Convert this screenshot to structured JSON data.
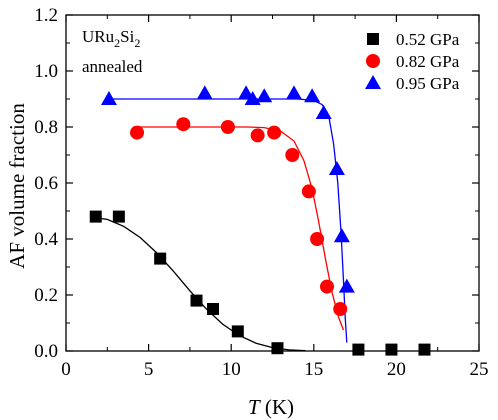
{
  "chart_data": {
    "type": "scatter",
    "xlabel_italic": "T",
    "xlabel_unit": " (K)",
    "ylabel": "AF volume fraction",
    "xlim": [
      0,
      25
    ],
    "ylim": [
      0,
      1.2
    ],
    "xticks": [
      "0",
      "5",
      "10",
      "15",
      "20",
      "25"
    ],
    "yticks": [
      "0.0",
      "0.2",
      "0.4",
      "0.6",
      "0.8",
      "1.0",
      "1.2"
    ],
    "grid": false,
    "legend_position": "top-right",
    "annotations": {
      "compound_main": "URu",
      "compound_sub1": "2",
      "compound_mid": "Si",
      "compound_sub2": "2",
      "condition": "annealed"
    },
    "series": [
      {
        "name": "0.52 GPa",
        "marker": "square",
        "color": "#000000",
        "points": [
          [
            1.8,
            0.48
          ],
          [
            3.2,
            0.48
          ],
          [
            5.7,
            0.33
          ],
          [
            7.9,
            0.18
          ],
          [
            8.9,
            0.15
          ],
          [
            10.4,
            0.07
          ],
          [
            12.8,
            0.01
          ],
          [
            17.7,
            0.005
          ],
          [
            19.7,
            0.005
          ],
          [
            21.7,
            0.005
          ]
        ],
        "fit": [
          [
            1.5,
            0.478
          ],
          [
            2.5,
            0.47
          ],
          [
            3.5,
            0.445
          ],
          [
            4.5,
            0.405
          ],
          [
            5.5,
            0.35
          ],
          [
            6.5,
            0.285
          ],
          [
            7.5,
            0.215
          ],
          [
            8.5,
            0.15
          ],
          [
            9.5,
            0.095
          ],
          [
            10.5,
            0.055
          ],
          [
            11.5,
            0.028
          ],
          [
            12.5,
            0.012
          ],
          [
            13.5,
            0.004
          ],
          [
            14.5,
            0.001
          ]
        ]
      },
      {
        "name": "0.82 GPa",
        "marker": "circle",
        "color": "#ff0000",
        "points": [
          [
            4.3,
            0.78
          ],
          [
            7.1,
            0.81
          ],
          [
            9.8,
            0.8
          ],
          [
            11.6,
            0.77
          ],
          [
            12.6,
            0.78
          ],
          [
            13.7,
            0.7
          ],
          [
            14.7,
            0.57
          ],
          [
            15.2,
            0.4
          ],
          [
            15.8,
            0.23
          ],
          [
            16.6,
            0.15
          ]
        ],
        "fit": [
          [
            4.3,
            0.8
          ],
          [
            8.0,
            0.8
          ],
          [
            11.0,
            0.8
          ],
          [
            12.0,
            0.798
          ],
          [
            13.0,
            0.785
          ],
          [
            13.8,
            0.75
          ],
          [
            14.4,
            0.68
          ],
          [
            14.9,
            0.58
          ],
          [
            15.3,
            0.46
          ],
          [
            15.7,
            0.33
          ],
          [
            16.1,
            0.21
          ],
          [
            16.5,
            0.12
          ],
          [
            16.8,
            0.075
          ]
        ]
      },
      {
        "name": "0.95 GPa",
        "marker": "triangle",
        "color": "#0000ff",
        "points": [
          [
            2.6,
            0.9
          ],
          [
            8.4,
            0.92
          ],
          [
            10.9,
            0.92
          ],
          [
            11.3,
            0.9
          ],
          [
            12.0,
            0.91
          ],
          [
            13.8,
            0.92
          ],
          [
            14.9,
            0.91
          ],
          [
            15.6,
            0.85
          ],
          [
            16.4,
            0.65
          ],
          [
            16.7,
            0.41
          ],
          [
            17.0,
            0.23
          ]
        ],
        "fit": [
          [
            2.6,
            0.9
          ],
          [
            10.0,
            0.9
          ],
          [
            14.0,
            0.9
          ],
          [
            15.0,
            0.895
          ],
          [
            15.5,
            0.88
          ],
          [
            15.9,
            0.84
          ],
          [
            16.2,
            0.74
          ],
          [
            16.45,
            0.6
          ],
          [
            16.65,
            0.42
          ],
          [
            16.8,
            0.25
          ],
          [
            16.9,
            0.12
          ],
          [
            17.0,
            0.03
          ]
        ]
      }
    ]
  }
}
